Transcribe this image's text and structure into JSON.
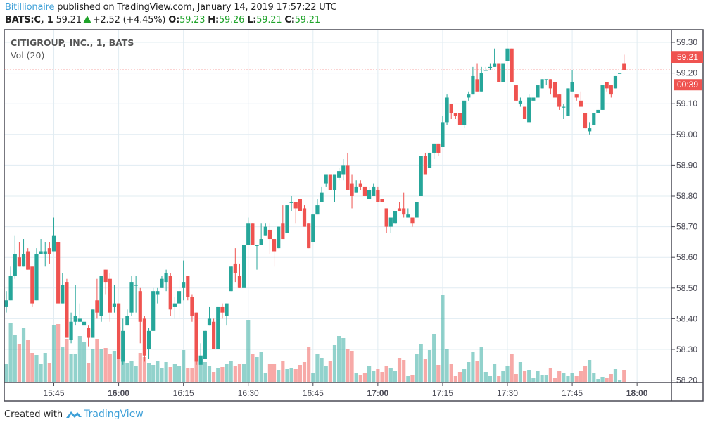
{
  "header": {
    "author": "Bitillionaire",
    "published_text": " published on TradingView.com, January 14, 2019 17:57:22 UTC",
    "symbol": "BATS:C, 1",
    "last": "59.21",
    "change": "+2.52 (+4.45%)",
    "o_label": "O:",
    "o": "59.23",
    "h_label": "H:",
    "h": "59.26",
    "l_label": "L:",
    "l": "59.21",
    "c_label": "C:",
    "c": "59.21"
  },
  "legend": {
    "title": "CITIGROUP, INC., 1, BATS",
    "indicator": "Vol (20)"
  },
  "price_tag": {
    "price": "59.21",
    "countdown": "00:39"
  },
  "footer": {
    "created_with": "Created with",
    "brand": "TradingView"
  },
  "colors": {
    "up": "#26a69a",
    "down": "#ef5350",
    "grid": "#e1ecf2",
    "axis": "#4a4a55",
    "brand": "#3ea0d8"
  },
  "chart_data": {
    "type": "candlestick",
    "title": "CITIGROUP, INC., 1, BATS",
    "interval_minutes": 1,
    "first_bar_time": "15:34",
    "ylim": [
      58.18,
      59.35
    ],
    "y_ticks": [
      "59.30",
      "59.20",
      "59.10",
      "59.00",
      "58.90",
      "58.80",
      "58.70",
      "58.60",
      "58.50",
      "58.40",
      "58.30",
      "58.20"
    ],
    "x_ticks": [
      {
        "label": "15:45",
        "minute": 11,
        "bold": false
      },
      {
        "label": "16:00",
        "minute": 26,
        "bold": true
      },
      {
        "label": "16:15",
        "minute": 41,
        "bold": false
      },
      {
        "label": "16:30",
        "minute": 56,
        "bold": false
      },
      {
        "label": "16:45",
        "minute": 71,
        "bold": false
      },
      {
        "label": "17:00",
        "minute": 86,
        "bold": true
      },
      {
        "label": "17:15",
        "minute": 101,
        "bold": false
      },
      {
        "label": "17:30",
        "minute": 116,
        "bold": false
      },
      {
        "label": "17:45",
        "minute": 131,
        "bold": false
      },
      {
        "label": "18:00",
        "minute": 146,
        "bold": true
      }
    ],
    "last_price": 59.21,
    "ohlc": [
      [
        58.44,
        58.49,
        58.42,
        58.46
      ],
      [
        58.46,
        58.57,
        58.46,
        58.54
      ],
      [
        58.54,
        58.67,
        58.53,
        58.61
      ],
      [
        58.6,
        58.65,
        58.57,
        58.57
      ],
      [
        58.57,
        58.66,
        58.57,
        58.61
      ],
      [
        58.62,
        58.63,
        58.56,
        58.56
      ],
      [
        58.57,
        58.57,
        58.44,
        58.45
      ],
      [
        58.46,
        58.63,
        58.46,
        58.61
      ],
      [
        58.61,
        58.66,
        58.61,
        58.62
      ],
      [
        58.61,
        58.65,
        58.57,
        58.62
      ],
      [
        58.63,
        58.65,
        58.58,
        58.61
      ],
      [
        58.62,
        58.73,
        58.62,
        58.67
      ],
      [
        58.65,
        58.65,
        58.45,
        58.45
      ],
      [
        58.45,
        58.55,
        58.45,
        58.51
      ],
      [
        58.52,
        58.53,
        58.34,
        58.34
      ],
      [
        58.33,
        58.42,
        58.32,
        58.39
      ],
      [
        58.39,
        58.51,
        58.38,
        58.41
      ],
      [
        58.39,
        58.45,
        58.39,
        58.4
      ],
      [
        58.38,
        58.4,
        58.27,
        58.39
      ],
      [
        58.37,
        58.38,
        58.31,
        58.34
      ],
      [
        58.34,
        58.43,
        58.34,
        58.43
      ],
      [
        58.46,
        58.53,
        58.4,
        58.42
      ],
      [
        58.41,
        58.54,
        58.39,
        58.54
      ],
      [
        58.56,
        58.56,
        58.48,
        58.52
      ],
      [
        58.53,
        58.55,
        58.39,
        58.42
      ],
      [
        58.44,
        58.51,
        58.42,
        58.45
      ],
      [
        58.45,
        58.45,
        58.27,
        58.27
      ],
      [
        58.26,
        58.4,
        58.25,
        58.36
      ],
      [
        58.38,
        58.43,
        58.38,
        58.41
      ],
      [
        58.42,
        58.54,
        58.41,
        58.52
      ],
      [
        58.51,
        58.54,
        58.42,
        58.51
      ],
      [
        58.49,
        58.5,
        58.32,
        58.39
      ],
      [
        58.4,
        58.41,
        58.26,
        58.28
      ],
      [
        58.3,
        58.37,
        58.27,
        58.36
      ],
      [
        58.36,
        58.5,
        58.36,
        58.49
      ],
      [
        58.48,
        58.5,
        58.45,
        58.49
      ],
      [
        58.5,
        58.54,
        58.5,
        58.53
      ],
      [
        58.52,
        58.56,
        58.49,
        58.55
      ],
      [
        58.54,
        58.55,
        58.41,
        58.43
      ],
      [
        58.44,
        58.47,
        58.4,
        58.45
      ],
      [
        58.45,
        58.53,
        58.4,
        58.49
      ],
      [
        58.5,
        58.59,
        58.46,
        58.52
      ],
      [
        58.54,
        58.54,
        58.46,
        58.47
      ],
      [
        58.47,
        58.48,
        58.39,
        58.41
      ],
      [
        58.42,
        58.42,
        58.25,
        58.26
      ],
      [
        58.25,
        58.32,
        58.25,
        58.28
      ],
      [
        58.27,
        58.36,
        58.27,
        58.36
      ],
      [
        58.38,
        58.44,
        58.38,
        58.4
      ],
      [
        58.39,
        58.4,
        58.3,
        58.3
      ],
      [
        58.3,
        58.44,
        58.3,
        58.44
      ],
      [
        58.44,
        58.45,
        58.4,
        58.42
      ],
      [
        58.41,
        58.45,
        58.38,
        58.45
      ],
      [
        58.49,
        58.57,
        58.49,
        58.57
      ],
      [
        58.58,
        58.63,
        58.52,
        58.55
      ],
      [
        58.54,
        58.58,
        58.5,
        58.5
      ],
      [
        58.5,
        58.64,
        58.5,
        58.64
      ],
      [
        58.64,
        58.73,
        58.64,
        58.71
      ],
      [
        58.71,
        58.71,
        58.64,
        58.64
      ],
      [
        58.64,
        58.64,
        58.56,
        58.64
      ],
      [
        58.64,
        58.71,
        58.64,
        58.66
      ],
      [
        58.67,
        58.71,
        58.67,
        58.7
      ],
      [
        58.69,
        58.71,
        58.61,
        58.66
      ],
      [
        58.66,
        58.66,
        58.57,
        58.62
      ],
      [
        58.63,
        58.7,
        58.63,
        58.7
      ],
      [
        58.71,
        58.77,
        58.66,
        58.66
      ],
      [
        58.68,
        58.77,
        58.68,
        58.77
      ],
      [
        58.78,
        58.8,
        58.75,
        58.78
      ],
      [
        58.78,
        58.78,
        58.71,
        58.76
      ],
      [
        58.79,
        58.79,
        58.75,
        58.75
      ],
      [
        58.76,
        58.77,
        58.7,
        58.7
      ],
      [
        58.71,
        58.71,
        58.63,
        58.63
      ],
      [
        58.65,
        58.74,
        58.65,
        58.74
      ],
      [
        58.74,
        58.79,
        58.74,
        58.77
      ],
      [
        58.78,
        58.83,
        58.78,
        58.81
      ],
      [
        58.84,
        58.87,
        58.83,
        58.87
      ],
      [
        58.87,
        58.87,
        58.82,
        58.82
      ],
      [
        58.82,
        58.87,
        58.78,
        58.87
      ],
      [
        58.86,
        58.89,
        58.85,
        58.88
      ],
      [
        58.87,
        58.92,
        58.85,
        58.9
      ],
      [
        58.9,
        58.94,
        58.82,
        58.82
      ],
      [
        58.84,
        58.87,
        58.76,
        58.8
      ],
      [
        58.81,
        58.85,
        58.81,
        58.83
      ],
      [
        58.84,
        58.85,
        58.82,
        58.83
      ],
      [
        58.83,
        58.83,
        58.8,
        58.8
      ],
      [
        58.79,
        58.83,
        58.79,
        58.82
      ],
      [
        58.8,
        58.84,
        58.8,
        58.83
      ],
      [
        58.82,
        58.83,
        58.78,
        58.78
      ],
      [
        58.79,
        58.79,
        58.78,
        58.78
      ],
      [
        58.76,
        58.76,
        58.68,
        58.7
      ],
      [
        58.7,
        58.73,
        58.68,
        58.73
      ],
      [
        58.71,
        58.75,
        58.71,
        58.75
      ],
      [
        58.76,
        58.78,
        58.75,
        58.75
      ],
      [
        58.76,
        58.81,
        58.73,
        58.74
      ],
      [
        58.73,
        58.76,
        58.73,
        58.74
      ],
      [
        58.73,
        58.73,
        58.7,
        58.71
      ],
      [
        58.73,
        58.78,
        58.73,
        58.78
      ],
      [
        58.8,
        58.93,
        58.8,
        58.93
      ],
      [
        58.93,
        58.94,
        58.87,
        58.87
      ],
      [
        58.89,
        58.94,
        58.89,
        58.94
      ],
      [
        58.94,
        58.97,
        58.92,
        58.97
      ],
      [
        58.97,
        58.97,
        58.93,
        58.94
      ],
      [
        58.96,
        59.06,
        58.96,
        59.04
      ],
      [
        59.04,
        59.13,
        59.03,
        59.12
      ],
      [
        59.1,
        59.1,
        59.05,
        59.07
      ],
      [
        59.07,
        59.07,
        59.05,
        59.06
      ],
      [
        59.07,
        59.07,
        59.03,
        59.03
      ],
      [
        59.03,
        59.11,
        59.02,
        59.11
      ],
      [
        59.12,
        59.14,
        59.11,
        59.13
      ],
      [
        59.13,
        59.22,
        59.13,
        59.19
      ],
      [
        59.18,
        59.23,
        59.14,
        59.14
      ],
      [
        59.14,
        59.22,
        59.14,
        59.2
      ],
      [
        59.21,
        59.22,
        59.21,
        59.21
      ],
      [
        59.22,
        59.23,
        59.21,
        59.22
      ],
      [
        59.22,
        59.28,
        59.22,
        59.23
      ],
      [
        59.23,
        59.23,
        59.17,
        59.17
      ],
      [
        59.17,
        59.23,
        59.17,
        59.23
      ],
      [
        59.24,
        59.28,
        59.24,
        59.28
      ],
      [
        59.28,
        59.28,
        59.17,
        59.17
      ],
      [
        59.16,
        59.16,
        59.11,
        59.11
      ],
      [
        59.1,
        59.12,
        59.09,
        59.11
      ],
      [
        59.09,
        59.09,
        59.05,
        59.05
      ],
      [
        59.04,
        59.13,
        59.04,
        59.12
      ],
      [
        59.11,
        59.12,
        59.11,
        59.12
      ],
      [
        59.12,
        59.16,
        59.12,
        59.16
      ],
      [
        59.15,
        59.18,
        59.15,
        59.18
      ],
      [
        59.18,
        59.18,
        59.16,
        59.18
      ],
      [
        59.18,
        59.18,
        59.13,
        59.15
      ],
      [
        59.17,
        59.17,
        59.12,
        59.12
      ],
      [
        59.13,
        59.13,
        59.08,
        59.09
      ],
      [
        59.09,
        59.1,
        59.05,
        59.09
      ],
      [
        59.06,
        59.15,
        59.06,
        59.15
      ],
      [
        59.14,
        59.21,
        59.14,
        59.17
      ],
      [
        59.13,
        59.13,
        59.11,
        59.12
      ],
      [
        59.11,
        59.14,
        59.09,
        59.09
      ],
      [
        59.07,
        59.07,
        59.02,
        59.02
      ],
      [
        59.01,
        59.04,
        59.0,
        59.02
      ],
      [
        59.03,
        59.07,
        59.03,
        59.07
      ],
      [
        59.07,
        59.08,
        59.07,
        59.08
      ],
      [
        59.08,
        59.16,
        59.08,
        59.16
      ],
      [
        59.17,
        59.17,
        59.14,
        59.15
      ],
      [
        59.16,
        59.16,
        59.12,
        59.13
      ],
      [
        59.15,
        59.19,
        59.15,
        59.19
      ],
      [
        59.2,
        59.2,
        59.2,
        59.2
      ],
      [
        59.23,
        59.26,
        59.21,
        59.21
      ]
    ],
    "volume": [
      25,
      84,
      67,
      54,
      76,
      59,
      41,
      38,
      25,
      41,
      27,
      81,
      82,
      49,
      61,
      39,
      39,
      65,
      56,
      27,
      46,
      61,
      46,
      48,
      40,
      44,
      78,
      30,
      27,
      29,
      23,
      41,
      36,
      27,
      24,
      30,
      20,
      28,
      21,
      26,
      22,
      45,
      20,
      20,
      32,
      32,
      28,
      22,
      14,
      20,
      21,
      25,
      29,
      22,
      25,
      26,
      88,
      39,
      36,
      43,
      13,
      25,
      25,
      17,
      29,
      18,
      20,
      18,
      24,
      28,
      49,
      12,
      39,
      34,
      23,
      29,
      53,
      65,
      63,
      46,
      44,
      12,
      10,
      12,
      23,
      15,
      18,
      14,
      23,
      20,
      15,
      34,
      31,
      8,
      10,
      40,
      54,
      32,
      45,
      68,
      24,
      124,
      47,
      25,
      9,
      14,
      19,
      28,
      42,
      30,
      49,
      14,
      9,
      25,
      9,
      15,
      22,
      40,
      11,
      28,
      15,
      17,
      5,
      15,
      10,
      10,
      20,
      6,
      15,
      13,
      8,
      12,
      8,
      15,
      22,
      31,
      12,
      4,
      7,
      6,
      11,
      18,
      2,
      17
    ]
  }
}
